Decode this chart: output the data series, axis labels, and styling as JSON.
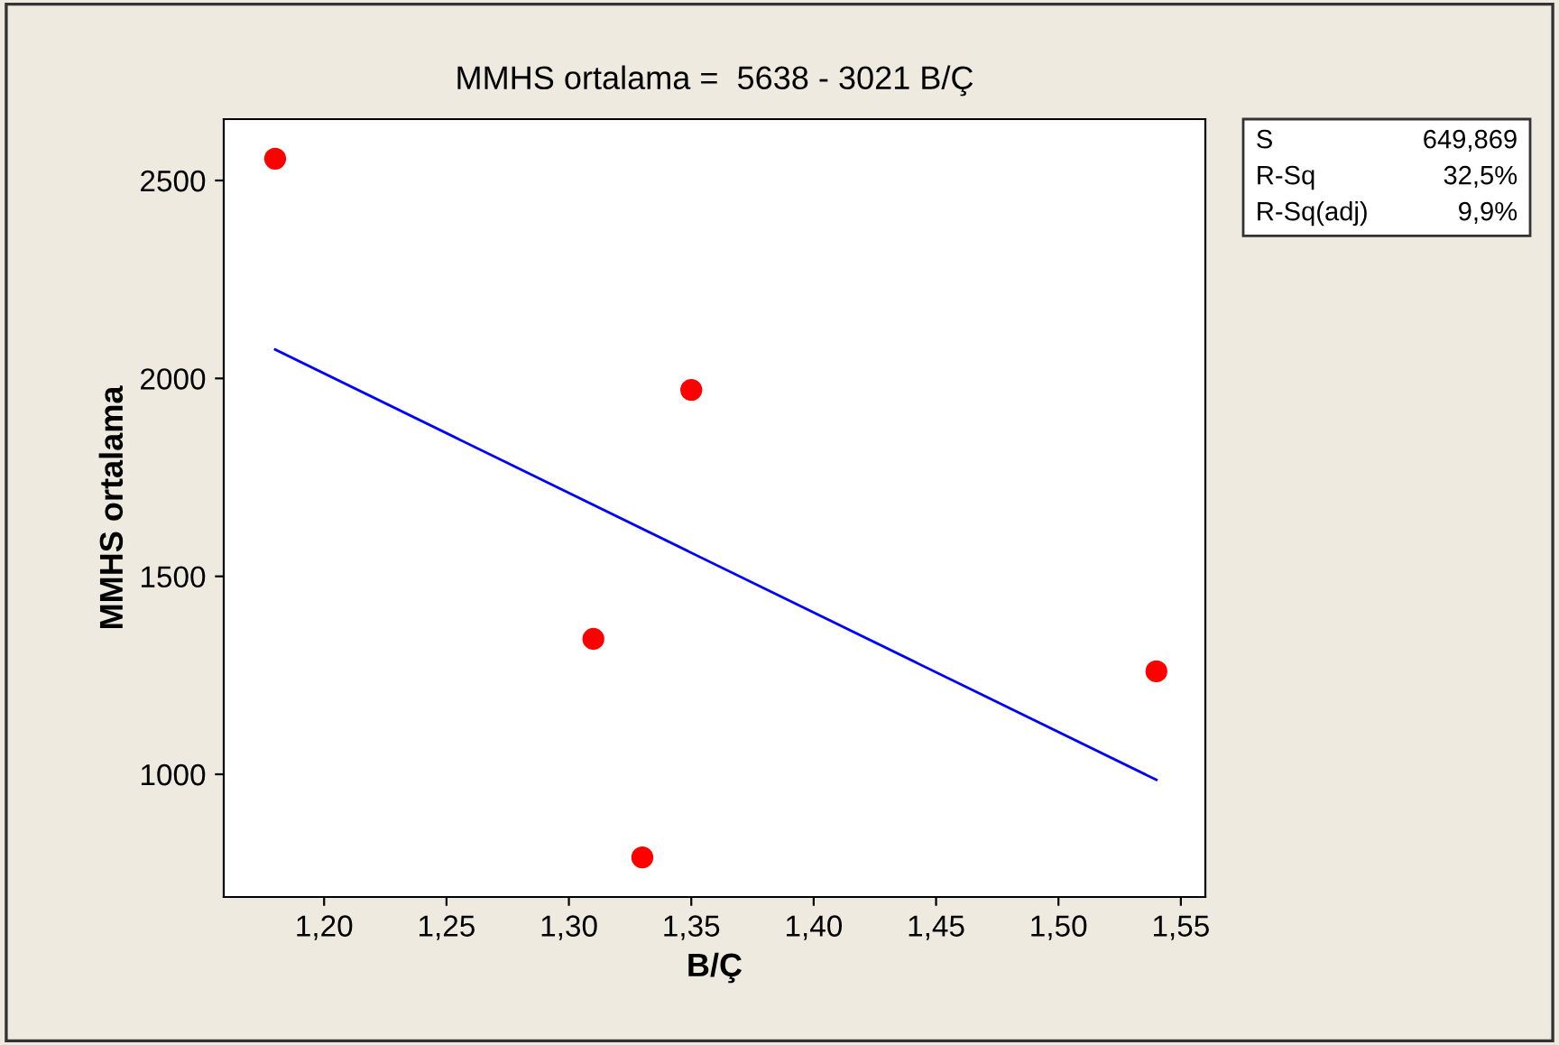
{
  "chart_data": {
    "type": "scatter",
    "title": "MMHS ortalama =  5638 - 3021 B/Ç",
    "xlabel": "B/Ç",
    "ylabel": "MMHS ortalama",
    "series": [
      {
        "color": "#ff0000",
        "marker": "circle",
        "x": [
          1.18,
          1.31,
          1.33,
          1.35,
          1.54
        ],
        "values": [
          2555,
          1342,
          790,
          1971,
          1260
        ]
      },
      {
        "type": "line",
        "color": "#0000ff",
        "marker": "none",
        "line_style": "solid",
        "x": [
          1.18,
          1.54
        ],
        "values": [
          2073,
          986
        ]
      }
    ],
    "xlim": [
      1.159,
      1.56
    ],
    "ylim": [
      690,
      2655
    ],
    "xticks": [
      {
        "value": 1.2,
        "label": "1,20"
      },
      {
        "value": 1.25,
        "label": "1,25"
      },
      {
        "value": 1.3,
        "label": "1,30"
      },
      {
        "value": 1.35,
        "label": "1,35"
      },
      {
        "value": 1.4,
        "label": "1,40"
      },
      {
        "value": 1.45,
        "label": "1,45"
      },
      {
        "value": 1.5,
        "label": "1,50"
      },
      {
        "value": 1.55,
        "label": "1,55"
      }
    ],
    "yticks": [
      1000,
      1500,
      2000,
      2500
    ],
    "grid": false,
    "legend": false,
    "annotations": [
      "S",
      "649,869",
      "R-Sq",
      "32,5%",
      "R-Sq(adj)",
      "9,9%"
    ]
  }
}
